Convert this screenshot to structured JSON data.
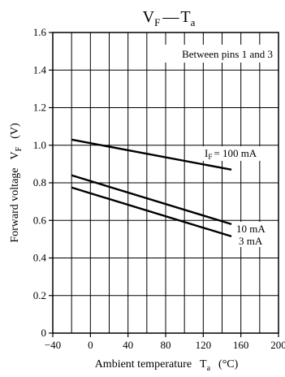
{
  "chart_data": {
    "type": "line",
    "title": {
      "main": "V",
      "main_sub": "F",
      "sep": "—",
      "tail": "T",
      "tail_sub": "a"
    },
    "xlabel": {
      "text": "Ambient temperature",
      "symbol": "T",
      "sub": "a",
      "unit": "(°C)"
    },
    "ylabel": {
      "text": "Forward voltage",
      "symbol": "V",
      "sub": "F",
      "unit": "(V)"
    },
    "xlim": [
      -40,
      200
    ],
    "ylim": [
      0,
      1.6
    ],
    "x_ticks": [
      "−40",
      "0",
      "40",
      "80",
      "120",
      "160",
      "200"
    ],
    "x_tick_values": [
      -40,
      0,
      40,
      80,
      120,
      160,
      200
    ],
    "y_ticks": [
      "0",
      "0.2",
      "0.4",
      "0.6",
      "0.8",
      "1.0",
      "1.2",
      "1.4",
      "1.6"
    ],
    "y_tick_values": [
      0,
      0.2,
      0.4,
      0.6,
      0.8,
      1.0,
      1.2,
      1.4,
      1.6
    ],
    "grid": {
      "x_step": 20,
      "y_step": 0.2
    },
    "note": "Between pins 1 and 3",
    "series": [
      {
        "label_prefix": "I",
        "label_sub": "F",
        "label": "= 100 mA",
        "x": [
          -20,
          150
        ],
        "y": [
          1.03,
          0.87
        ]
      },
      {
        "label": "10 mA",
        "x": [
          -20,
          150
        ],
        "y": [
          0.84,
          0.58
        ]
      },
      {
        "label": "3 mA",
        "x": [
          -20,
          150
        ],
        "y": [
          0.775,
          0.515
        ]
      }
    ]
  }
}
